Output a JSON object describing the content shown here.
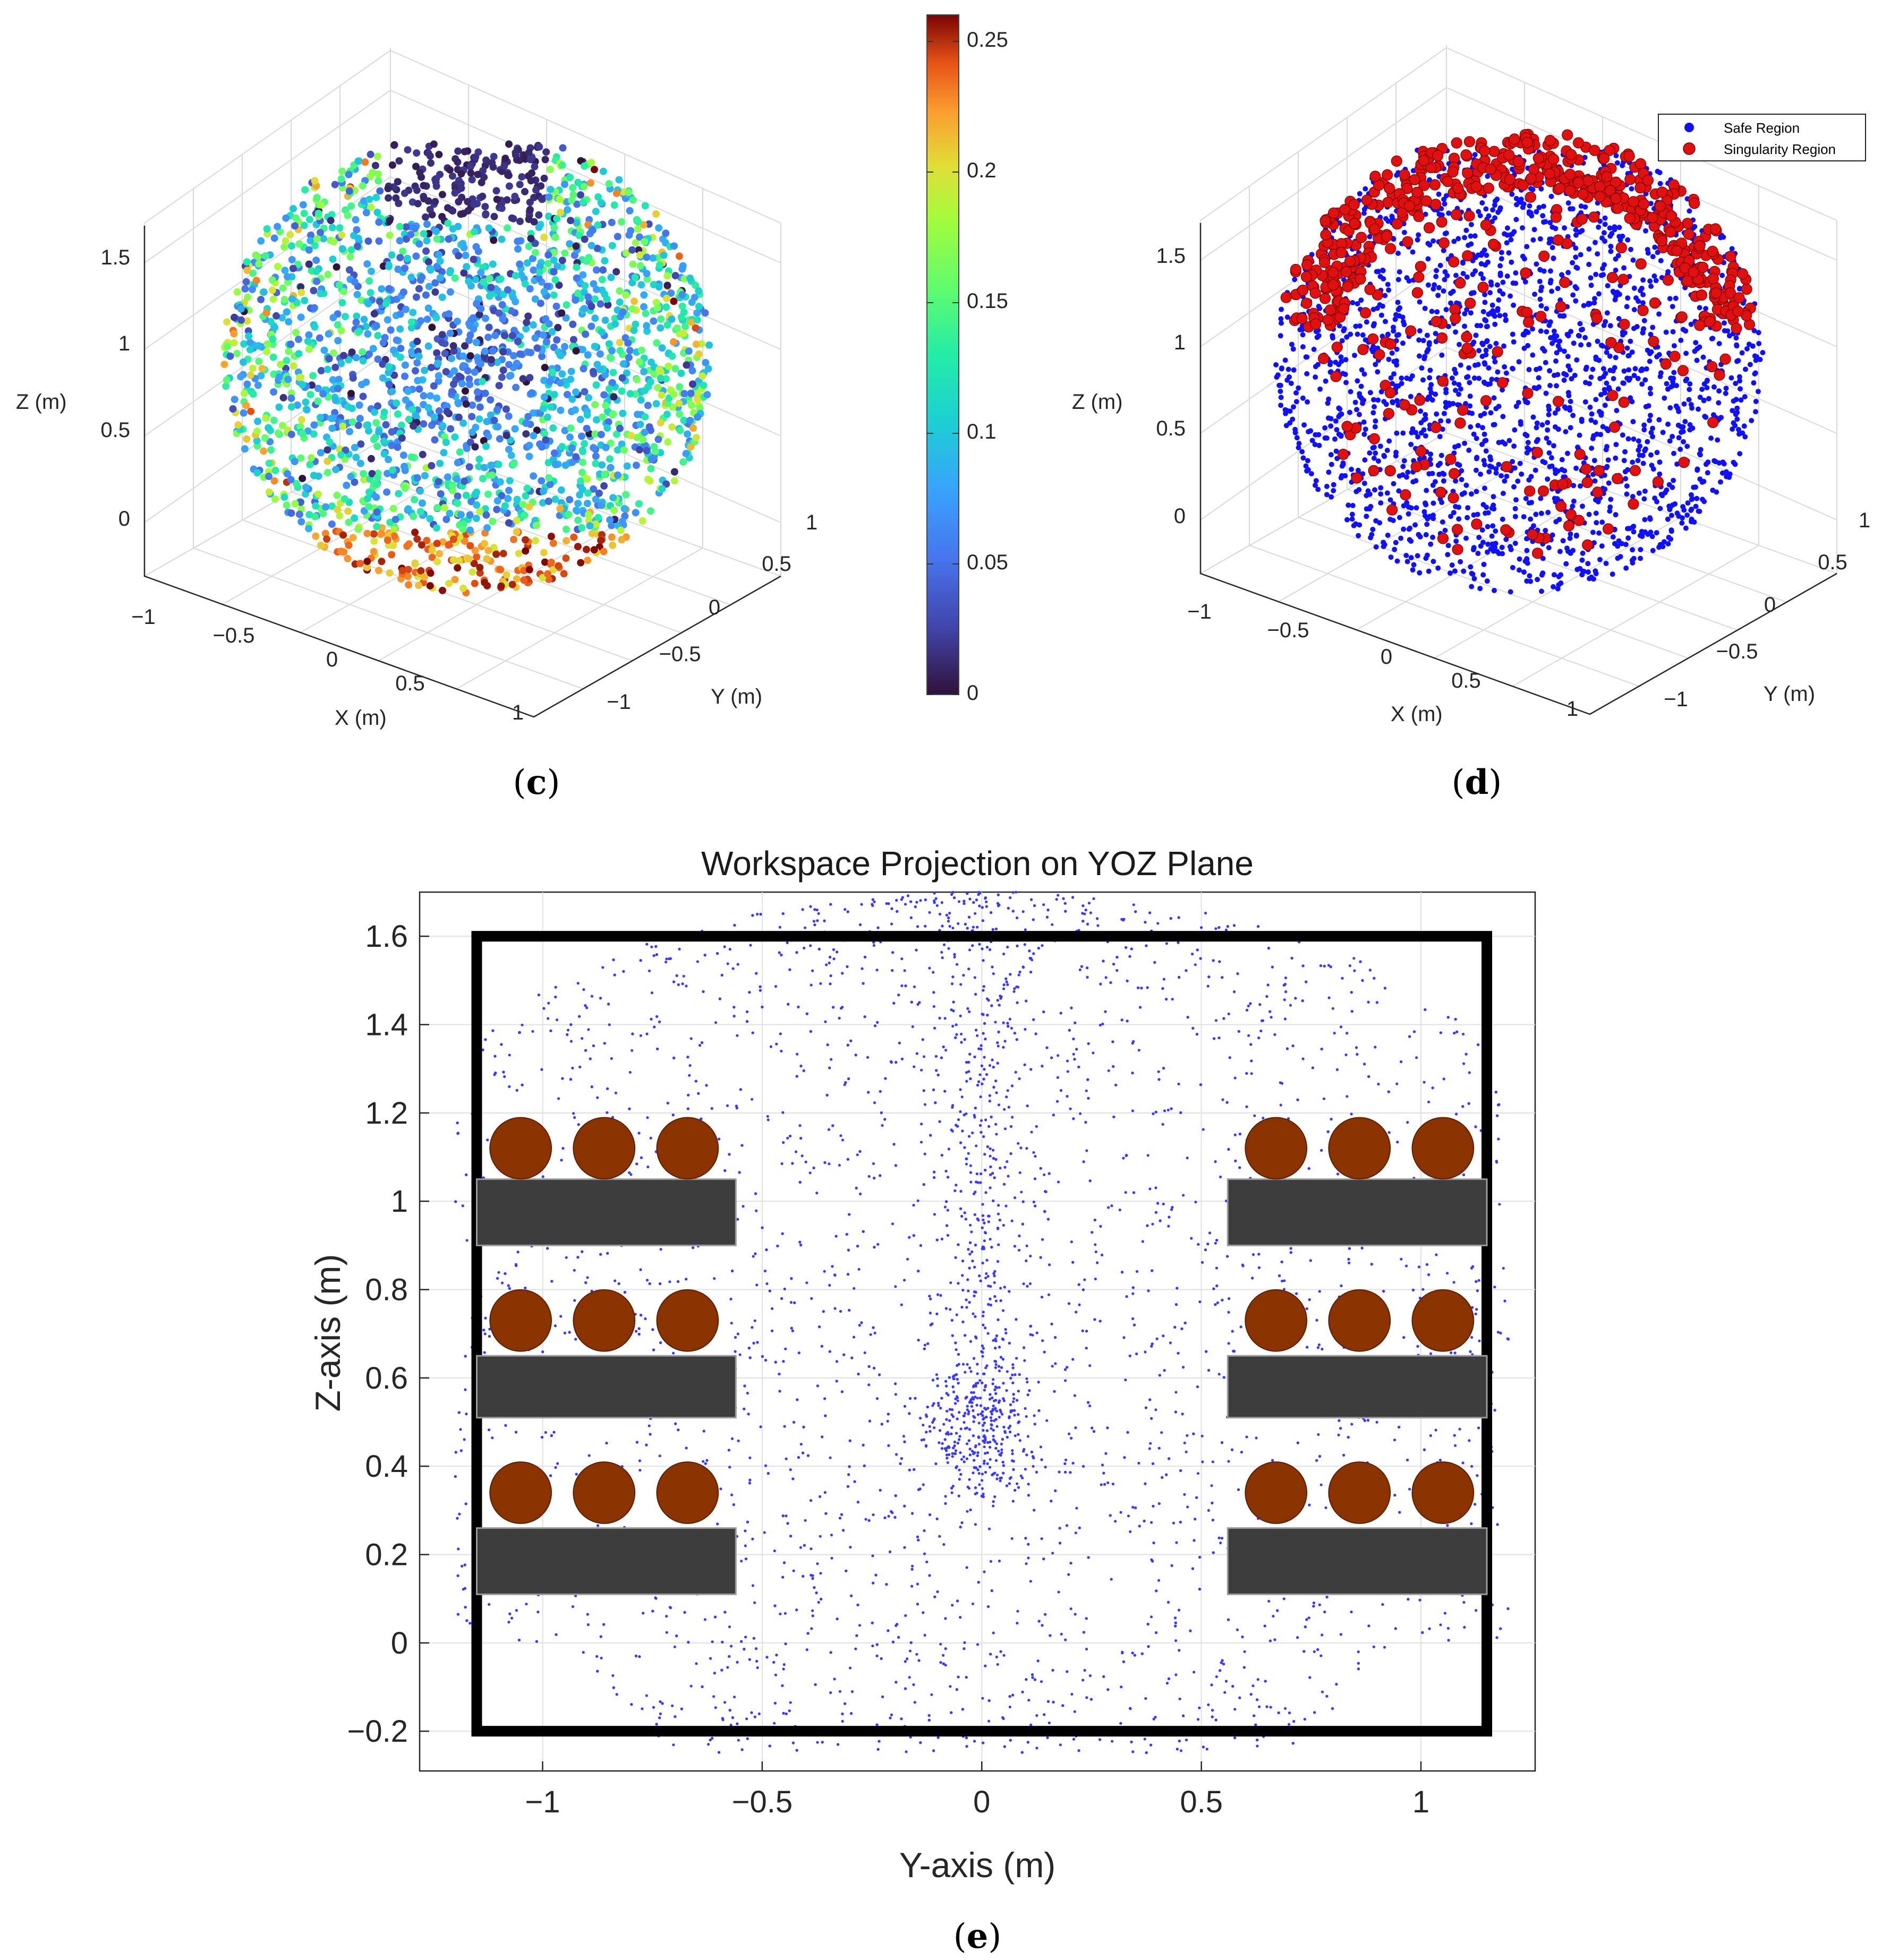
{
  "panels": {
    "c": {
      "label": "(c)",
      "letter": "c"
    },
    "d": {
      "label": "(d)",
      "letter": "d"
    },
    "e": {
      "label": "(e)",
      "letter": "e"
    }
  },
  "colors": {
    "safe": "#1010ff",
    "singular": "#e01010",
    "shelf": "#3c3c3c",
    "item": "#8b3300",
    "frame": "#000000",
    "scatter_e": "#3a3aff"
  },
  "chart_data": [
    {
      "id": "c",
      "type": "scatter",
      "projection": "3d",
      "title": "",
      "xlabel": "X (m)",
      "ylabel": "Y (m)",
      "zlabel": "Z (m)",
      "x_ticks": [
        "−1",
        "−0.5",
        "0",
        "0.5",
        "1"
      ],
      "y_ticks": [
        "−1",
        "−0.5",
        "0",
        "0.5",
        "1"
      ],
      "z_ticks": [
        "0",
        "0.5",
        "1",
        "1.5"
      ],
      "xlim": [
        -1.2,
        1.2
      ],
      "ylim": [
        -1.2,
        1.2
      ],
      "zlim": [
        -0.3,
        1.7
      ],
      "colormap": "turbo",
      "colorbar_ticks": [
        "0",
        "0.05",
        "0.1",
        "0.15",
        "0.2",
        "0.25"
      ],
      "clim": [
        0,
        0.26
      ],
      "grid": true
    },
    {
      "id": "d",
      "type": "scatter",
      "projection": "3d",
      "title": "",
      "xlabel": "X (m)",
      "ylabel": "Y (m)",
      "zlabel": "Z (m)",
      "x_ticks": [
        "−1",
        "−0.5",
        "0",
        "0.5",
        "1"
      ],
      "y_ticks": [
        "−1",
        "−0.5",
        "0",
        "0.5",
        "1"
      ],
      "z_ticks": [
        "0",
        "0.5",
        "1",
        "1.5"
      ],
      "xlim": [
        -1.2,
        1.2
      ],
      "ylim": [
        -1.2,
        1.2
      ],
      "zlim": [
        -0.3,
        1.7
      ],
      "series": [
        {
          "name": "Safe Region"
        },
        {
          "name": "Singularity Region"
        }
      ],
      "legend": "top-right",
      "grid": true
    },
    {
      "id": "e",
      "type": "scatter",
      "title": "Workspace Projection on YOZ Plane",
      "xlabel": "Y-axis (m)",
      "ylabel": "Z-axis (m)",
      "x_ticks": [
        "−1",
        "−0.5",
        "0",
        "0.5",
        "1"
      ],
      "y_ticks": [
        "−0.2",
        "0",
        "0.2",
        "0.4",
        "0.6",
        "0.8",
        "1",
        "1.2",
        "1.4",
        "1.6"
      ],
      "xlim": [
        -1.28,
        1.26
      ],
      "ylim": [
        -0.29,
        1.7
      ],
      "grid": true,
      "frame_y": [
        -1.15,
        1.15
      ],
      "frame_z": [
        -0.2,
        1.6
      ],
      "shelves": [
        {
          "y0": -1.15,
          "y1": -0.56,
          "z0": 0.9,
          "z1": 1.05
        },
        {
          "y0": -1.15,
          "y1": -0.56,
          "z0": 0.51,
          "z1": 0.65
        },
        {
          "y0": -1.15,
          "y1": -0.56,
          "z0": 0.11,
          "z1": 0.26
        },
        {
          "y0": 0.56,
          "y1": 1.15,
          "z0": 0.9,
          "z1": 1.05
        },
        {
          "y0": 0.56,
          "y1": 1.15,
          "z0": 0.51,
          "z1": 0.65
        },
        {
          "y0": 0.56,
          "y1": 1.15,
          "z0": 0.11,
          "z1": 0.26
        }
      ],
      "items": [
        {
          "y": -1.05,
          "z": 1.12
        },
        {
          "y": -0.86,
          "z": 1.12
        },
        {
          "y": -0.67,
          "z": 1.12
        },
        {
          "y": -1.05,
          "z": 0.73
        },
        {
          "y": -0.86,
          "z": 0.73
        },
        {
          "y": -0.67,
          "z": 0.73
        },
        {
          "y": -1.05,
          "z": 0.34
        },
        {
          "y": -0.86,
          "z": 0.34
        },
        {
          "y": -0.67,
          "z": 0.34
        },
        {
          "y": 0.67,
          "z": 1.12
        },
        {
          "y": 0.86,
          "z": 1.12
        },
        {
          "y": 1.05,
          "z": 1.12
        },
        {
          "y": 0.67,
          "z": 0.73
        },
        {
          "y": 0.86,
          "z": 0.73
        },
        {
          "y": 1.05,
          "z": 0.73
        },
        {
          "y": 0.67,
          "z": 0.34
        },
        {
          "y": 0.86,
          "z": 0.34
        },
        {
          "y": 1.05,
          "z": 0.34
        }
      ],
      "item_radius_m": 0.07
    }
  ]
}
